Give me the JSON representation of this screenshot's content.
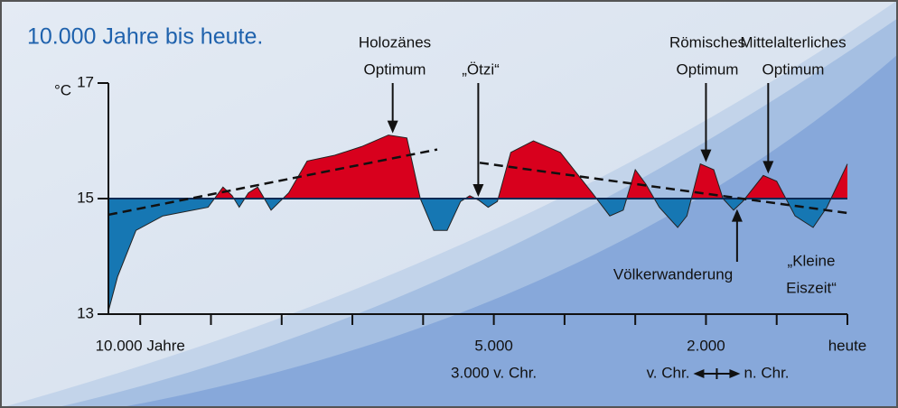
{
  "chart_data": {
    "type": "area",
    "title": "10.000 Jahre bis heute.",
    "y_label": "°C",
    "baseline": 15,
    "above_color": "#d8001d",
    "below_color": "#1677b3",
    "x": [
      10450,
      10320,
      10060,
      9680,
      9040,
      8950,
      8830,
      8700,
      8600,
      8470,
      8340,
      8150,
      7900,
      7640,
      7250,
      6870,
      6490,
      6230,
      6040,
      5850,
      5660,
      5470,
      5340,
      5210,
      5080,
      4950,
      4760,
      4440,
      4060,
      3610,
      3360,
      3170,
      3000,
      2850,
      2660,
      2400,
      2270,
      2080,
      1890,
      1760,
      1610,
      1480,
      1190,
      1000,
      740,
      485,
      290,
      0
    ],
    "values": [
      13.05,
      13.65,
      14.45,
      14.7,
      14.85,
      15.0,
      15.2,
      15.05,
      14.85,
      15.1,
      15.2,
      14.8,
      15.1,
      15.65,
      15.75,
      15.9,
      16.1,
      16.05,
      15.0,
      14.45,
      14.45,
      14.95,
      15.05,
      14.97,
      14.85,
      14.95,
      15.8,
      16.0,
      15.8,
      15.1,
      14.7,
      14.8,
      15.5,
      15.25,
      14.85,
      14.5,
      14.7,
      15.6,
      15.5,
      15.0,
      14.8,
      14.95,
      15.4,
      15.3,
      14.7,
      14.5,
      14.85,
      15.6
    ],
    "trends": [
      {
        "x": [
          10450,
          5800
        ],
        "values": [
          14.72,
          15.85
        ]
      },
      {
        "x": [
          5200,
          0
        ],
        "values": [
          15.62,
          14.75
        ]
      }
    ],
    "xlim": [
      10450,
      0
    ],
    "xticks": [
      10000,
      9000,
      8000,
      7000,
      6000,
      5000,
      4000,
      3000,
      2000,
      1000,
      0
    ],
    "xtick_labels": [
      {
        "value": 10000,
        "label": "10.000 Jahre"
      },
      {
        "value": 5000,
        "label": "5.000"
      },
      {
        "value": 2000,
        "label": "2.000"
      },
      {
        "value": 0,
        "label": "heute"
      }
    ],
    "era_labels": [
      "3.000 v. Chr.",
      "v. Chr.",
      "n. Chr."
    ],
    "ylim": [
      13,
      17
    ],
    "yticks": [
      13,
      15,
      17
    ],
    "annotations": [
      {
        "lines": [
          "Holozänes",
          "Optimum"
        ],
        "x": 6430,
        "y": 16.1
      },
      {
        "lines": [
          "„Ötzi“"
        ],
        "x": 5220,
        "y": 15.0
      },
      {
        "lines": [
          "Römisches",
          "Optimum"
        ],
        "x": 2000,
        "y": 15.6
      },
      {
        "lines": [
          "Mittelalterliches",
          "Optimum"
        ],
        "x": 1120,
        "y": 15.4
      },
      {
        "lines": [
          "Völkerwanderung"
        ],
        "x": 1560,
        "y": 14.85
      },
      {
        "lines": [
          "„Kleine",
          "Eiszeit“"
        ],
        "x": 400,
        "y": 14.5
      }
    ]
  }
}
